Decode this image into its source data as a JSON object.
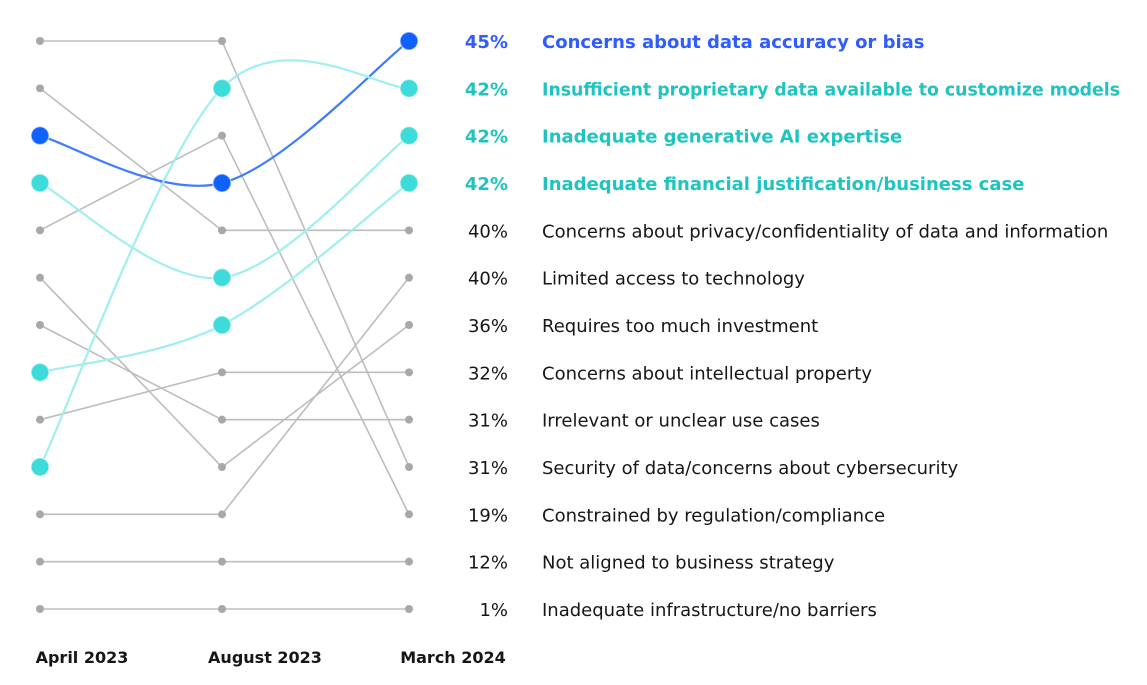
{
  "chart_data": {
    "type": "bump",
    "periods": [
      "April 2023",
      "August 2023",
      "March 2024"
    ],
    "rank_order": "1 = top",
    "colors": {
      "highlight_blue": "#0f62fe",
      "highlight_teal": "#3ddbd9",
      "other": "#bdbdbd",
      "text": "#161616"
    },
    "series": [
      {
        "name": "Concerns about data accuracy or bias",
        "value": "45%",
        "ranks": [
          3,
          4,
          1
        ],
        "highlight": "blue"
      },
      {
        "name": "Insufficient proprietary data available to customize models",
        "value": "42%",
        "ranks": [
          10,
          2,
          2
        ],
        "highlight": "teal"
      },
      {
        "name": "Inadequate generative AI expertise",
        "value": "42%",
        "ranks": [
          4,
          6,
          3
        ],
        "highlight": "teal"
      },
      {
        "name": "Inadequate financial justification/business case",
        "value": "42%",
        "ranks": [
          8,
          7,
          4
        ],
        "highlight": "teal"
      },
      {
        "name": "Concerns about privacy/confidentiality of data and information",
        "value": "40%",
        "ranks": [
          2,
          5,
          5
        ],
        "highlight": "none"
      },
      {
        "name": "Limited access to technology",
        "value": "40%",
        "ranks": [
          11,
          11,
          6
        ],
        "highlight": "none"
      },
      {
        "name": "Requires too much investment",
        "value": "36%",
        "ranks": [
          6,
          10,
          7
        ],
        "highlight": "none"
      },
      {
        "name": "Concerns about intellectual property",
        "value": "32%",
        "ranks": [
          9,
          8,
          8
        ],
        "highlight": "none"
      },
      {
        "name": "Irrelevant or unclear use cases",
        "value": "31%",
        "ranks": [
          7,
          9,
          9
        ],
        "highlight": "none"
      },
      {
        "name": "Security of data/concerns about cybersecurity",
        "value": "31%",
        "ranks": [
          1,
          1,
          10
        ],
        "highlight": "none"
      },
      {
        "name": "Constrained by regulation/compliance",
        "value": "19%",
        "ranks": [
          5,
          3,
          11
        ],
        "highlight": "none"
      },
      {
        "name": "Not aligned to business strategy",
        "value": "12%",
        "ranks": [
          12,
          12,
          12
        ],
        "highlight": "none"
      },
      {
        "name": "Inadequate infrastructure/no barriers",
        "value": "1%",
        "ranks": [
          13,
          13,
          13
        ],
        "highlight": "none"
      }
    ]
  }
}
